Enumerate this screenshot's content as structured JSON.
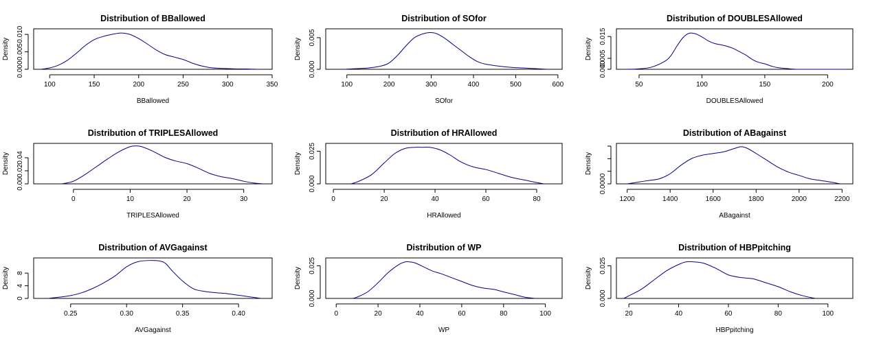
{
  "colors": {
    "curve": "#00008B",
    "axis": "#000000",
    "background": "#ffffff"
  },
  "chart_data": [
    {
      "type": "line",
      "title": "Distribution of BBallowed",
      "xlabel": "BBallowed",
      "ylabel": "Density",
      "xlim": [
        82,
        350
      ],
      "ylim": [
        0,
        0.0116
      ],
      "xticks": [
        "100",
        "150",
        "200",
        "250",
        "300",
        "350"
      ],
      "yticks": [
        "0.000",
        "0.005",
        "0.010"
      ],
      "series": [
        {
          "x": [
            90,
            100,
            110,
            120,
            130,
            140,
            150,
            160,
            170,
            180,
            190,
            200,
            210,
            220,
            230,
            240,
            250,
            260,
            270,
            280,
            290,
            300,
            310,
            320,
            335
          ],
          "y": [
            0.0,
            0.0004,
            0.0012,
            0.0026,
            0.0046,
            0.0068,
            0.0085,
            0.0094,
            0.01,
            0.0104,
            0.01,
            0.0088,
            0.0072,
            0.0055,
            0.0042,
            0.0035,
            0.0028,
            0.0018,
            0.001,
            0.0005,
            0.0003,
            0.0002,
            0.0001,
            0.0001,
            0.0
          ]
        }
      ]
    },
    {
      "type": "line",
      "title": "Distribution of SOfor",
      "xlabel": "SOfor",
      "ylabel": "Density",
      "xlim": [
        50,
        610
      ],
      "ylim": [
        0,
        0.0064
      ],
      "xticks": [
        "100",
        "200",
        "300",
        "400",
        "500",
        "600"
      ],
      "yticks": [
        "0.000",
        "0.005"
      ],
      "series": [
        {
          "x": [
            95,
            120,
            150,
            180,
            200,
            220,
            240,
            260,
            280,
            295,
            310,
            330,
            350,
            370,
            390,
            410,
            430,
            460,
            490,
            520,
            550,
            575
          ],
          "y": [
            0.0,
            0.0001,
            0.0002,
            0.0005,
            0.001,
            0.0022,
            0.0037,
            0.005,
            0.0056,
            0.0058,
            0.0057,
            0.005,
            0.004,
            0.003,
            0.002,
            0.0012,
            0.0008,
            0.0005,
            0.0003,
            0.0002,
            0.0001,
            0.0
          ]
        }
      ]
    },
    {
      "type": "line",
      "title": "Distribution of DOUBLESAllowed",
      "xlabel": "DOUBLESAllowed",
      "ylabel": "Density",
      "xlim": [
        32,
        220
      ],
      "ylim": [
        0,
        0.0185
      ],
      "xticks": [
        "50",
        "100",
        "150",
        "200"
      ],
      "yticks": [
        "0.000",
        "0.005",
        "0.015"
      ],
      "series": [
        {
          "x": [
            40,
            50,
            60,
            70,
            75,
            80,
            85,
            90,
            95,
            100,
            105,
            110,
            115,
            120,
            125,
            130,
            135,
            140,
            145,
            150,
            155,
            160,
            170,
            175,
            180,
            190,
            200,
            210,
            215
          ],
          "y": [
            0.0,
            0.0002,
            0.001,
            0.0035,
            0.006,
            0.0105,
            0.0145,
            0.0165,
            0.0162,
            0.0148,
            0.013,
            0.0118,
            0.0112,
            0.0105,
            0.0095,
            0.008,
            0.0065,
            0.0045,
            0.0032,
            0.0025,
            0.0015,
            0.0008,
            0.0002,
            0.0,
            0.0,
            0.0,
            0.0,
            0.0,
            0.0
          ]
        }
      ]
    },
    {
      "type": "line",
      "title": "Distribution of TRIPLESAllowed",
      "xlabel": "TRIPLESAllowed",
      "ylabel": "Density",
      "xlim": [
        -7,
        35
      ],
      "ylim": [
        0,
        0.062
      ],
      "xticks": [
        "0",
        "10",
        "20",
        "30"
      ],
      "yticks": [
        "0.00",
        "0.02",
        "0.04"
      ],
      "series": [
        {
          "x": [
            -2,
            0,
            2,
            4,
            6,
            8,
            10,
            11,
            12,
            14,
            16,
            18,
            20,
            22,
            24,
            26,
            28,
            30,
            32,
            33.5
          ],
          "y": [
            0.0,
            0.004,
            0.014,
            0.026,
            0.038,
            0.049,
            0.057,
            0.058,
            0.057,
            0.05,
            0.041,
            0.035,
            0.031,
            0.024,
            0.016,
            0.011,
            0.008,
            0.004,
            0.001,
            0.0
          ]
        }
      ]
    },
    {
      "type": "line",
      "title": "Distribution of HRAllowed",
      "xlabel": "HRAllowed",
      "ylabel": "Density",
      "xlim": [
        -3,
        90
      ],
      "ylim": [
        0,
        0.031
      ],
      "xticks": [
        "0",
        "20",
        "40",
        "60",
        "80"
      ],
      "yticks": [
        "0.000",
        "0.025"
      ],
      "series": [
        {
          "x": [
            7,
            10,
            15,
            20,
            24,
            28,
            32,
            35,
            38,
            42,
            46,
            50,
            55,
            60,
            65,
            70,
            75,
            80,
            83
          ],
          "y": [
            0.0,
            0.002,
            0.007,
            0.016,
            0.023,
            0.027,
            0.028,
            0.028,
            0.028,
            0.026,
            0.022,
            0.017,
            0.013,
            0.011,
            0.008,
            0.005,
            0.003,
            0.001,
            0.0
          ]
        }
      ]
    },
    {
      "type": "line",
      "title": "Distribution of ABagainst",
      "xlabel": "ABagainst",
      "ylabel": "Density",
      "xlim": [
        1150,
        2250
      ],
      "ylim": [
        0,
        0.0024
      ],
      "xticks": [
        "1200",
        "1400",
        "1600",
        "1800",
        "2000",
        "2200"
      ],
      "yticks": [
        "0.0000"
      ],
      "series": [
        {
          "x": [
            1200,
            1250,
            1300,
            1350,
            1400,
            1450,
            1500,
            1550,
            1600,
            1650,
            1700,
            1730,
            1760,
            1800,
            1850,
            1900,
            1950,
            2000,
            2050,
            2100,
            2150,
            2190
          ],
          "y": [
            0.0,
            0.0001,
            0.0002,
            0.0003,
            0.0006,
            0.0011,
            0.0015,
            0.0017,
            0.0018,
            0.0019,
            0.0021,
            0.0022,
            0.0021,
            0.0018,
            0.0014,
            0.001,
            0.0007,
            0.0005,
            0.0003,
            0.0002,
            0.0001,
            0.0
          ]
        }
      ]
    },
    {
      "type": "line",
      "title": "Distribution of AVGagainst",
      "xlabel": "AVGagainst",
      "ylabel": "Density",
      "xlim": [
        0.217,
        0.43
      ],
      "ylim": [
        0,
        12.8
      ],
      "xticks": [
        "0.25",
        "0.30",
        "0.35",
        "0.40"
      ],
      "yticks": [
        "0",
        "4",
        "8"
      ],
      "series": [
        {
          "x": [
            0.23,
            0.24,
            0.25,
            0.26,
            0.27,
            0.28,
            0.29,
            0.3,
            0.31,
            0.32,
            0.33,
            0.335,
            0.34,
            0.35,
            0.36,
            0.37,
            0.38,
            0.39,
            0.4,
            0.41,
            0.42
          ],
          "y": [
            0.0,
            0.4,
            0.9,
            1.8,
            3.2,
            5.0,
            7.2,
            10.0,
            11.6,
            12.0,
            11.8,
            11.0,
            9.0,
            5.5,
            3.0,
            2.2,
            1.8,
            1.5,
            1.0,
            0.5,
            0.0
          ]
        }
      ]
    },
    {
      "type": "line",
      "title": "Distribution of WP",
      "xlabel": "WP",
      "ylabel": "Density",
      "xlim": [
        -5,
        108
      ],
      "ylim": [
        0,
        0.031
      ],
      "xticks": [
        "0",
        "20",
        "40",
        "60",
        "80",
        "100"
      ],
      "yticks": [
        "0.000",
        "0.025"
      ],
      "series": [
        {
          "x": [
            8,
            10,
            15,
            20,
            25,
            30,
            33,
            35,
            38,
            42,
            46,
            50,
            55,
            60,
            65,
            70,
            75,
            80,
            85,
            90,
            95
          ],
          "y": [
            0.0,
            0.001,
            0.005,
            0.012,
            0.02,
            0.026,
            0.028,
            0.028,
            0.027,
            0.024,
            0.021,
            0.019,
            0.016,
            0.013,
            0.01,
            0.008,
            0.007,
            0.005,
            0.003,
            0.001,
            0.0
          ]
        }
      ]
    },
    {
      "type": "line",
      "title": "Distribution of HBPpitching",
      "xlabel": "HBPpitching",
      "ylabel": "Density",
      "xlim": [
        15,
        110
      ],
      "ylim": [
        0,
        0.031
      ],
      "xticks": [
        "20",
        "40",
        "60",
        "80",
        "100"
      ],
      "yticks": [
        "0.000",
        "0.025"
      ],
      "series": [
        {
          "x": [
            18,
            20,
            25,
            30,
            35,
            40,
            43,
            46,
            50,
            55,
            60,
            65,
            70,
            75,
            80,
            85,
            90,
            95
          ],
          "y": [
            0.0,
            0.002,
            0.007,
            0.014,
            0.021,
            0.026,
            0.028,
            0.028,
            0.027,
            0.023,
            0.018,
            0.016,
            0.015,
            0.012,
            0.009,
            0.005,
            0.002,
            0.0
          ]
        }
      ]
    }
  ]
}
